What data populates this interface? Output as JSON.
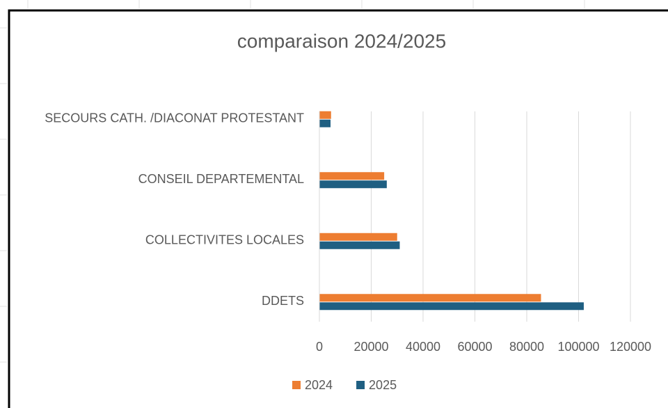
{
  "chart_data": {
    "type": "bar",
    "orientation": "horizontal",
    "title": "comparaison 2024/2025",
    "categories": [
      "DDETS",
      "COLLECTIVITES LOCALES",
      "CONSEIL DEPARTEMENTAL",
      "SECOURS CATH. /DIACONAT PROTESTANT"
    ],
    "series": [
      {
        "name": "2024",
        "color": "#ed7d31",
        "values": [
          85500,
          30000,
          25000,
          4500
        ]
      },
      {
        "name": "2025",
        "color": "#1f5f82",
        "values": [
          102000,
          31000,
          26000,
          4300
        ]
      }
    ],
    "xlim": [
      0,
      120000
    ],
    "xticks": [
      0,
      20000,
      40000,
      60000,
      80000,
      100000,
      120000
    ],
    "grid": true,
    "legend": "bottom"
  }
}
